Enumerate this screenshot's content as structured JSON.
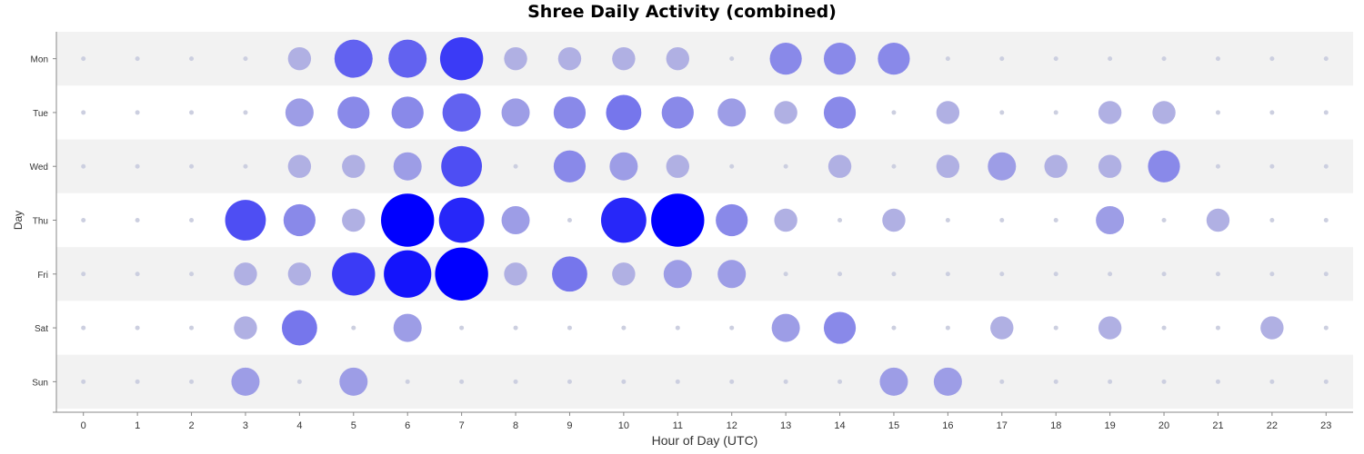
{
  "chart_data": {
    "type": "bubble",
    "title": "Shree Daily Activity (combined)",
    "xlabel": "Hour of Day (UTC)",
    "ylabel": "Day",
    "x_ticks": [
      "0",
      "1",
      "2",
      "3",
      "4",
      "5",
      "6",
      "7",
      "8",
      "9",
      "10",
      "11",
      "12",
      "13",
      "14",
      "15",
      "16",
      "17",
      "18",
      "19",
      "20",
      "21",
      "22",
      "23"
    ],
    "days": [
      "Mon",
      "Tue",
      "Wed",
      "Thu",
      "Fri",
      "Sat",
      "Sun"
    ],
    "xlim": [
      -0.5,
      23.5
    ],
    "max_value": 10,
    "grid": false,
    "values": [
      [
        0,
        0,
        0,
        0,
        1,
        5,
        5,
        7,
        1,
        1,
        1,
        1,
        0,
        3,
        3,
        3,
        0,
        0,
        0,
        0,
        0,
        0,
        0,
        0
      ],
      [
        0,
        0,
        0,
        0,
        2,
        3,
        3,
        5,
        2,
        3,
        4,
        3,
        2,
        1,
        3,
        0,
        1,
        0,
        0,
        1,
        1,
        0,
        0,
        0
      ],
      [
        0,
        0,
        0,
        0,
        1,
        1,
        2,
        6,
        0,
        3,
        2,
        1,
        0,
        0,
        1,
        0,
        1,
        2,
        1,
        1,
        3,
        0,
        0,
        0
      ],
      [
        0,
        0,
        0,
        6,
        3,
        1,
        10,
        8,
        2,
        0,
        8,
        10,
        3,
        1,
        0,
        1,
        0,
        0,
        0,
        2,
        0,
        1,
        0,
        0
      ],
      [
        0,
        0,
        0,
        1,
        1,
        7,
        9,
        10,
        1,
        4,
        1,
        2,
        2,
        0,
        0,
        0,
        0,
        0,
        0,
        0,
        0,
        0,
        0,
        0
      ],
      [
        0,
        0,
        0,
        1,
        4,
        0,
        2,
        0,
        0,
        0,
        0,
        0,
        0,
        2,
        3,
        0,
        0,
        1,
        0,
        1,
        0,
        0,
        1,
        0
      ],
      [
        0,
        0,
        0,
        2,
        0,
        2,
        0,
        0,
        0,
        0,
        0,
        0,
        0,
        0,
        0,
        2,
        2,
        0,
        0,
        0,
        0,
        0,
        0,
        0
      ]
    ]
  }
}
